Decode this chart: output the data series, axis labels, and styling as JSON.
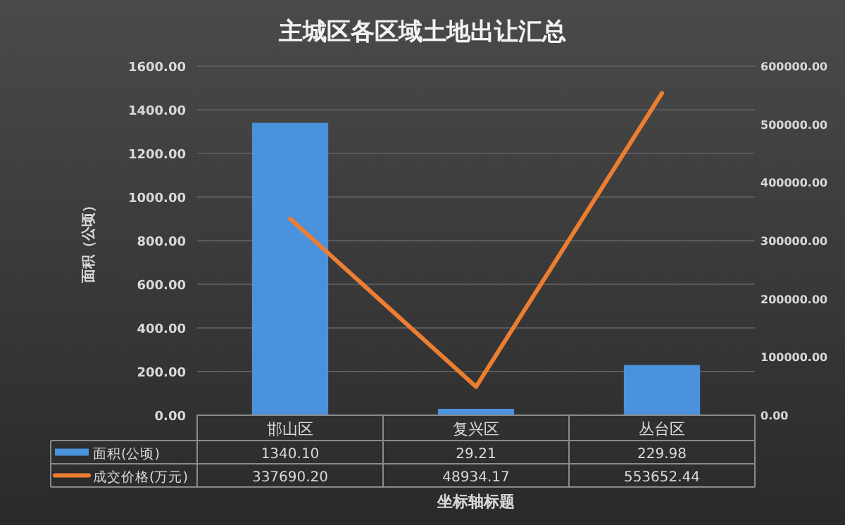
{
  "chart_data": {
    "type": "bar",
    "title": "主城区各区域土地出让汇总",
    "xlabel": "坐标轴标题",
    "ylabel": "面积（公顷）",
    "categories": [
      "邯山区",
      "复兴区",
      "丛台区"
    ],
    "series": [
      {
        "name": "面积(公顷)",
        "color": "#4a92dc",
        "values": [
          1340.1,
          29.21,
          229.98
        ],
        "value_labels": [
          "1340.10",
          "29.21",
          "229.98"
        ]
      },
      {
        "name": "成交价格(万元)",
        "type": "line",
        "axis": "y2",
        "color": "#ed7d31",
        "values": [
          337690.2,
          48934.17,
          553652.44
        ],
        "value_labels": [
          "337690.20",
          "48934.17",
          "553652.44"
        ]
      }
    ],
    "ylim": [
      0,
      1600
    ],
    "yticks": [
      {
        "value": 0,
        "label": "0.00"
      },
      {
        "value": 200,
        "label": "200.00"
      },
      {
        "value": 400,
        "label": "400.00"
      },
      {
        "value": 600,
        "label": "600.00"
      },
      {
        "value": 800,
        "label": "800.00"
      },
      {
        "value": 1000,
        "label": "1000.00"
      },
      {
        "value": 1200,
        "label": "1200.00"
      },
      {
        "value": 1400,
        "label": "1400.00"
      },
      {
        "value": 1600,
        "label": "1600.00"
      }
    ],
    "y2lim": [
      0,
      600000
    ],
    "y2ticks": [
      {
        "value": 0,
        "label": "0.00"
      },
      {
        "value": 100000,
        "label": "100000.00"
      },
      {
        "value": 200000,
        "label": "200000.00"
      },
      {
        "value": 300000,
        "label": "300000.00"
      },
      {
        "value": 400000,
        "label": "400000.00"
      },
      {
        "value": 500000,
        "label": "500000.00"
      },
      {
        "value": 600000,
        "label": "600000.00"
      }
    ],
    "grid": "y",
    "legend": "bottom"
  }
}
